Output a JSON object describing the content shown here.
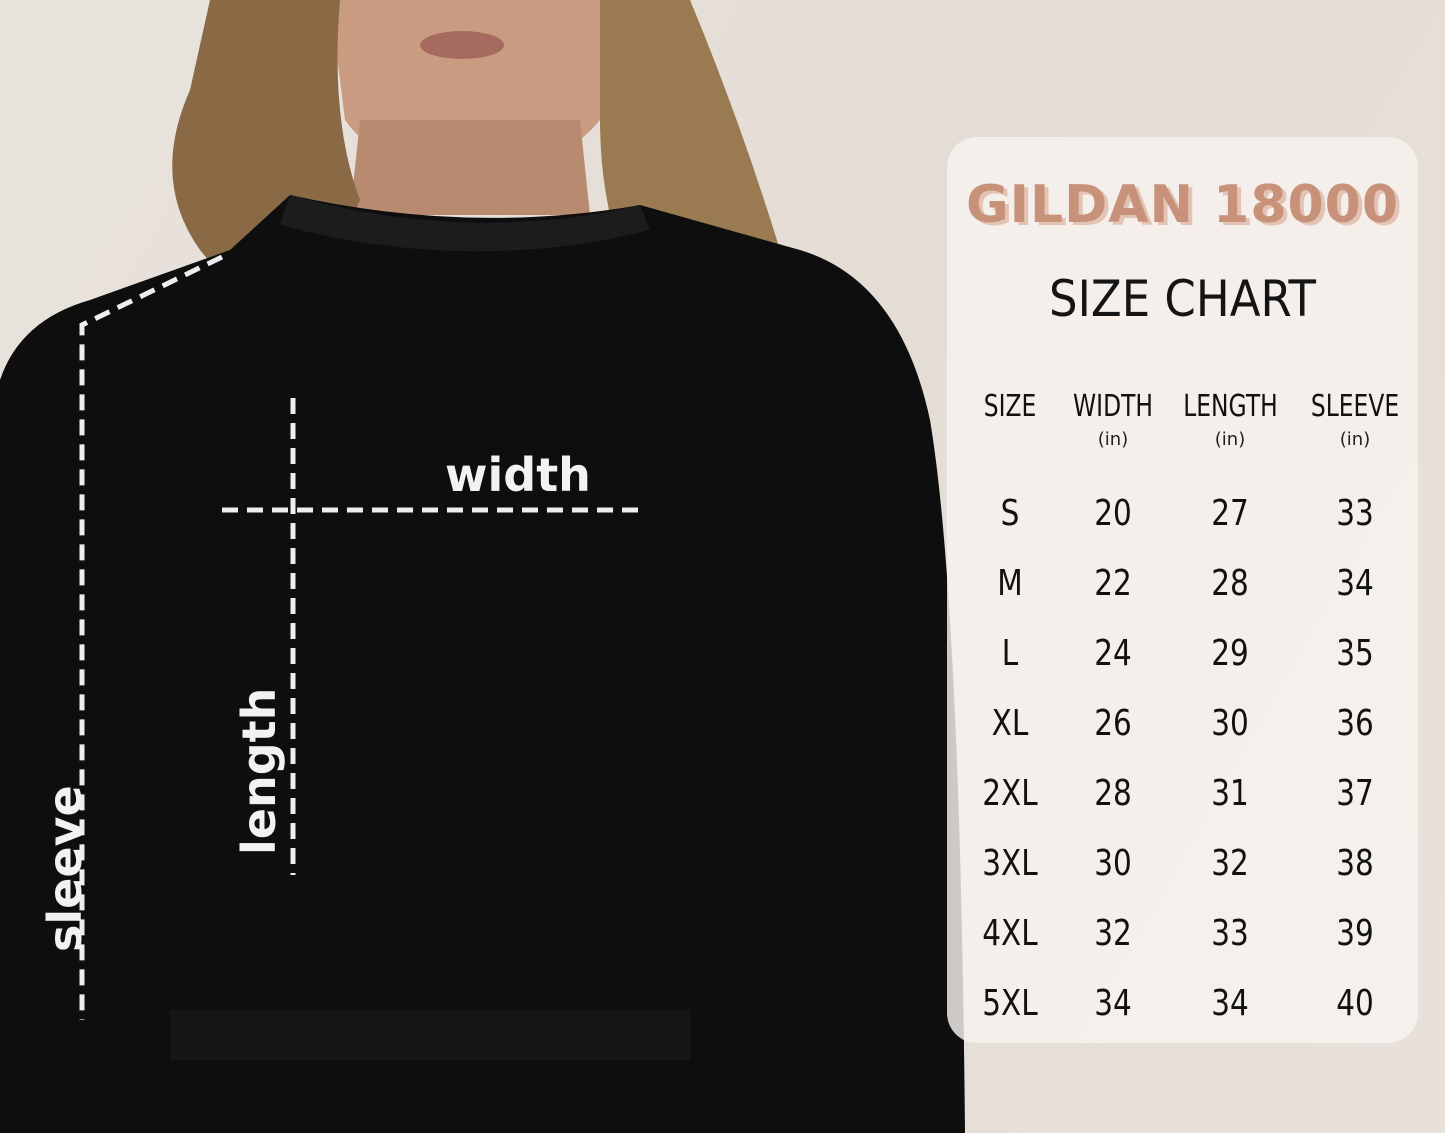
{
  "measure_labels": {
    "width": "width",
    "length": "length",
    "sleeve": "sleeve"
  },
  "chart": {
    "title": "GILDAN 18000",
    "subtitle": "SIZE CHART",
    "columns": [
      {
        "label": "SIZE",
        "unit": ""
      },
      {
        "label": "WIDTH",
        "unit": "(in)"
      },
      {
        "label": "LENGTH",
        "unit": "(in)"
      },
      {
        "label": "SLEEVE",
        "unit": "(in)"
      }
    ],
    "rows": [
      [
        "S",
        "20",
        "27",
        "33"
      ],
      [
        "M",
        "22",
        "28",
        "34"
      ],
      [
        "L",
        "24",
        "29",
        "35"
      ],
      [
        "XL",
        "26",
        "30",
        "36"
      ],
      [
        "2XL",
        "28",
        "31",
        "37"
      ],
      [
        "3XL",
        "30",
        "32",
        "38"
      ],
      [
        "4XL",
        "32",
        "33",
        "39"
      ],
      [
        "5XL",
        "34",
        "34",
        "40"
      ]
    ]
  },
  "colors": {
    "title": "#c8917a",
    "title_shadow": "#e3c3b3",
    "sweatshirt": "#0e0e0e",
    "background": "#e7e0d9"
  }
}
